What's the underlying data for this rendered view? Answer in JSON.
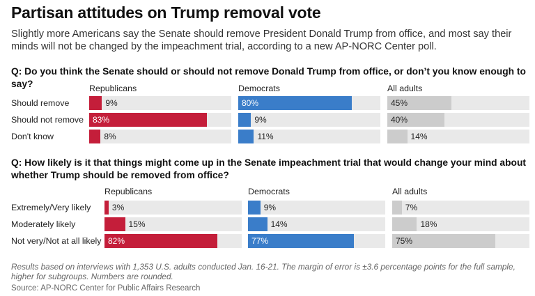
{
  "title": "Partisan attitudes on Trump removal vote",
  "subtitle": "Slightly more Americans say the Senate should remove President Donald Trump from office, and most say their minds will not be changed by the impeachment trial, according to a new AP-NORC Center poll.",
  "note": "Results based on interviews with 1,353 U.S. adults conducted Jan. 16-21. The margin of error is ±3.6 percentage points for the full sample, higher for subgroups. Numbers are rounded.",
  "source": "Source: AP-NORC Center for Public Affairs Research",
  "colors": {
    "republicans": "#c41e3a",
    "democrats": "#3a7dc9",
    "all_adults": "#cccccc",
    "track": "#e9e9e9"
  },
  "chart_data": [
    {
      "type": "bar",
      "orientation": "horizontal",
      "question": "Q: Do you think the Senate should or should not remove Donald Trump from office, or don’t you know enough to say?",
      "categories": [
        "Should remove",
        "Should not remove",
        "Don't know"
      ],
      "series": [
        {
          "name": "Republicans",
          "values": [
            9,
            83,
            8
          ],
          "labels": [
            "9%",
            "83%",
            "8%"
          ]
        },
        {
          "name": "Democrats",
          "values": [
            80,
            9,
            11
          ],
          "labels": [
            "80%",
            "9%",
            "11%"
          ]
        },
        {
          "name": "All adults",
          "values": [
            45,
            40,
            14
          ],
          "labels": [
            "45%",
            "40%",
            "14%"
          ]
        }
      ],
      "xlim": [
        0,
        100
      ]
    },
    {
      "type": "bar",
      "orientation": "horizontal",
      "question": "Q: How likely is it that things might come up in the Senate impeachment trial that would change your mind about whether Trump should be removed from office?",
      "categories": [
        "Extremely/Very likely",
        "Moderately likely",
        "Not very/Not at all likely"
      ],
      "series": [
        {
          "name": "Republicans",
          "values": [
            3,
            15,
            82
          ],
          "labels": [
            "3%",
            "15%",
            "82%"
          ]
        },
        {
          "name": "Democrats",
          "values": [
            9,
            14,
            77
          ],
          "labels": [
            "9%",
            "14%",
            "77%"
          ]
        },
        {
          "name": "All adults",
          "values": [
            7,
            18,
            75
          ],
          "labels": [
            "7%",
            "18%",
            "75%"
          ]
        }
      ],
      "xlim": [
        0,
        100
      ]
    }
  ]
}
